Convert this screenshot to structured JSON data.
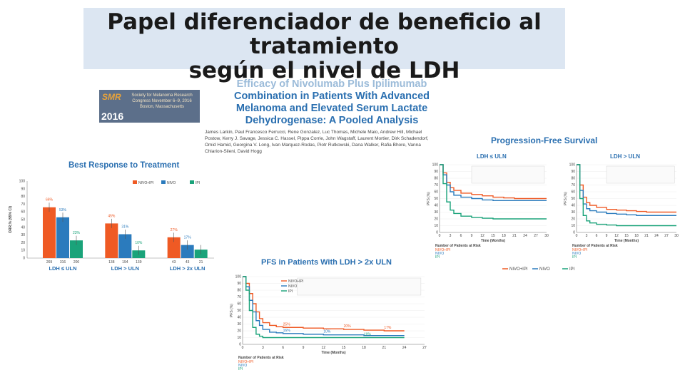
{
  "slide": {
    "title_lines": [
      "Papel diferenciador de beneficio al",
      "tratamiento",
      "según el nivel de LDH"
    ]
  },
  "poster": {
    "title_lines": [
      "Efficacy of Nivolumab Plus Ipilimumab",
      "Combination in Patients With Advanced",
      "Melanoma and Elevated Serum Lactate",
      "Dehydrogenase: A Pooled Analysis"
    ],
    "authors": "James Larkin, Paul Francesco Ferrucci, Rene Gonzalez, Luc Thomas, Michele Maio, Andrew Hill, Michael Postow, Kerry J. Savage, Jessica C. Hassel, Pippa Corrie, John Wagstaff, Laurent Mortier, Dirk Schadendorf, Omid Hamid, Georgina V. Long, Ivan Marquez-Rodas, Piotr Rutkowski, Dana Walker, Rafia Bhore, Vanna Chiarion-Sileni, David Hogg",
    "logo": {
      "acronym": "SMR",
      "year": "2016",
      "society": "Society for Melanoma Research Congress November 6–9, 2016 Boston, Massachusetts"
    }
  },
  "colors": {
    "nivo_ipi": "#ef5a24",
    "niv": "#2b7bbd",
    "ipi": "#1aa37a",
    "title_blue": "#2a6fb0",
    "title_box": "#dce6f2"
  },
  "chart_data": [
    {
      "type": "bar",
      "title": "Best Response to Treatment",
      "ylabel": "ORR,% (95% CI)",
      "ylim": [
        0,
        100
      ],
      "yticks": [
        0,
        10,
        20,
        30,
        40,
        50,
        60,
        70,
        80,
        90,
        100
      ],
      "groups": [
        "LDH ≤ ULN",
        "LDH > ULN",
        "LDH > 2x ULN"
      ],
      "series": [
        {
          "name": "NIVO+IPI",
          "values": [
            66,
            45,
            27
          ],
          "n": [
            269,
            138,
            43
          ]
        },
        {
          "name": "NIVO",
          "values": [
            53,
            31,
            17
          ],
          "n": [
            316,
            194,
            43
          ]
        },
        {
          "name": "IPI",
          "values": [
            23,
            10,
            11
          ],
          "n": [
            200,
            139,
            21
          ]
        }
      ],
      "value_labels": [
        [
          "66%",
          "53%",
          "23%"
        ],
        [
          "45%",
          "31%",
          "10%"
        ],
        [
          "27%",
          "17%",
          ""
        ]
      ]
    },
    {
      "type": "line",
      "title": "Progression-Free Survival",
      "subtitle": "LDH ≤ ULN",
      "ylabel": "PFS (%)",
      "xlabel": "Time (Months)",
      "ylim": [
        0,
        100
      ],
      "yticks": [
        0,
        10,
        20,
        30,
        40,
        50,
        60,
        70,
        80,
        90,
        100
      ],
      "xticks": [
        0,
        3,
        6,
        9,
        12,
        15,
        18,
        21,
        24,
        27,
        30
      ],
      "x": [
        0,
        1,
        2,
        3,
        4,
        6,
        9,
        12,
        15,
        18,
        21,
        24,
        27,
        30
      ],
      "series": [
        {
          "name": "NIVO+IPI",
          "values": [
            100,
            88,
            74,
            66,
            62,
            58,
            56,
            54,
            52,
            51,
            50,
            50,
            50,
            50
          ]
        },
        {
          "name": "NIVO",
          "values": [
            100,
            85,
            70,
            60,
            55,
            52,
            50,
            48,
            47,
            47,
            47,
            47,
            47,
            47
          ]
        },
        {
          "name": "IPI",
          "values": [
            100,
            72,
            45,
            33,
            28,
            24,
            22,
            21,
            20,
            20,
            20,
            20,
            20,
            20
          ]
        }
      ],
      "risk_title": "Number of Patients at Risk"
    },
    {
      "type": "line",
      "subtitle": "LDH > ULN",
      "ylabel": "PFS (%)",
      "xlabel": "Time (Months)",
      "ylim": [
        0,
        100
      ],
      "yticks": [
        0,
        10,
        20,
        30,
        40,
        50,
        60,
        70,
        80,
        90,
        100
      ],
      "xticks": [
        0,
        3,
        6,
        9,
        12,
        15,
        18,
        21,
        24,
        27,
        30
      ],
      "x": [
        0,
        1,
        2,
        3,
        4,
        6,
        9,
        12,
        15,
        18,
        21,
        24,
        27,
        30
      ],
      "series": [
        {
          "name": "NIVO+IPI",
          "values": [
            100,
            70,
            52,
            44,
            40,
            37,
            34,
            33,
            32,
            31,
            30,
            30,
            30,
            30
          ]
        },
        {
          "name": "NIVO",
          "values": [
            100,
            62,
            42,
            35,
            32,
            30,
            28,
            27,
            26,
            25,
            25,
            25,
            25,
            25
          ]
        },
        {
          "name": "IPI",
          "values": [
            100,
            50,
            25,
            17,
            14,
            12,
            11,
            10,
            10,
            10,
            10,
            10,
            10,
            10
          ]
        }
      ],
      "risk_title": "Number of Patients at Risk"
    },
    {
      "type": "line",
      "title": "PFS in Patients With LDH > 2x ULN",
      "ylabel": "PFS (%)",
      "xlabel": "Time (Months)",
      "ylim": [
        0,
        100
      ],
      "yticks": [
        0,
        10,
        20,
        30,
        40,
        50,
        60,
        70,
        80,
        90,
        100
      ],
      "xticks": [
        0,
        3,
        6,
        9,
        12,
        15,
        18,
        21,
        24,
        27
      ],
      "x": [
        0,
        0.5,
        1,
        1.5,
        2,
        2.5,
        3,
        4,
        5,
        6,
        9,
        12,
        15,
        18,
        21,
        24
      ],
      "series": [
        {
          "name": "NIVO+IPI",
          "values": [
            100,
            90,
            75,
            60,
            48,
            38,
            32,
            28,
            26,
            25,
            24,
            23,
            22,
            21,
            20,
            20
          ]
        },
        {
          "name": "NIVO",
          "values": [
            100,
            85,
            65,
            48,
            35,
            28,
            22,
            18,
            17,
            16,
            15,
            14,
            14,
            13,
            13,
            13
          ]
        },
        {
          "name": "IPI",
          "values": [
            100,
            80,
            50,
            25,
            15,
            12,
            10,
            10,
            10,
            10,
            10,
            10,
            10,
            10,
            10,
            10
          ]
        }
      ],
      "value_labels": [
        "25%",
        "20%",
        "17%",
        "16%",
        "10%",
        "10%"
      ],
      "legend": [
        "NIVO+IPI",
        "NIVO",
        "IPI"
      ],
      "risk_title": "Number of Patients at Risk"
    }
  ]
}
